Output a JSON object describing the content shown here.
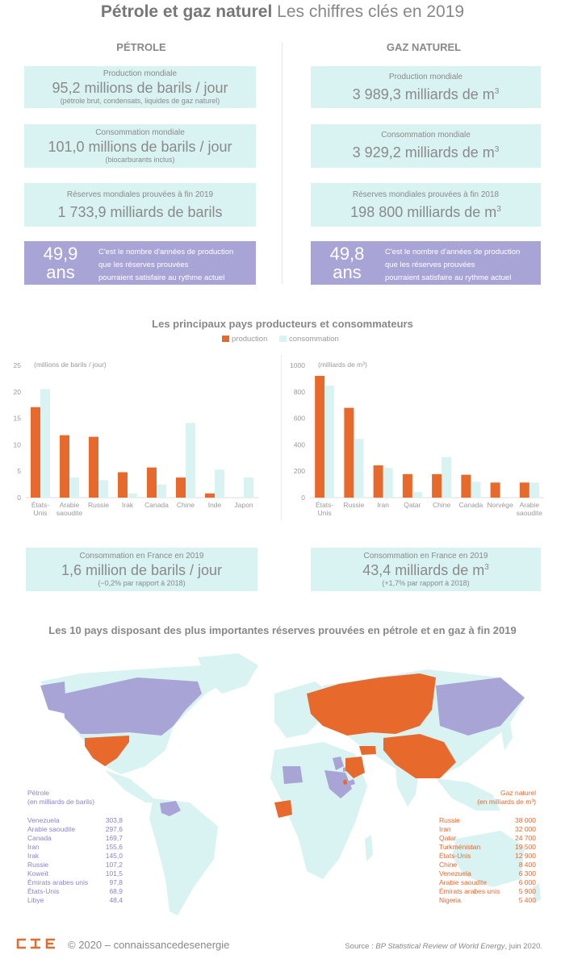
{
  "header": {
    "title_bold": "Pétrole et gaz naturel",
    "title_rest": "Les chiffres clés en 2019"
  },
  "petrole": {
    "heading": "PÉTROLE",
    "production": {
      "label": "Production mondiale",
      "value": "95,2 millions de barils / jour",
      "note": "(pétrole brut, condensats, liquides de gaz naturel)"
    },
    "consommation": {
      "label": "Consommation mondiale",
      "value": "101,0 millions de barils / jour",
      "note": "(biocarburants inclus)"
    },
    "reserves": {
      "label": "Réserves mondiales prouvées à fin 2019",
      "value": "1 733,9 milliards de barils"
    },
    "annees": {
      "num": "49,9",
      "unit": "ans",
      "l1": "C'est le nombre d'années de production",
      "l2": "que les réserves prouvées",
      "l3": "pourraient satisfaire au rythme actuel"
    }
  },
  "gaz": {
    "heading": "GAZ NATUREL",
    "production": {
      "label": "Production mondiale",
      "value": "3 989,3 milliards de m",
      "sup": "3"
    },
    "consommation": {
      "label": "Consommation mondiale",
      "value": "3 929,2 milliards de m",
      "sup": "3"
    },
    "reserves": {
      "label": "Réserves mondiales prouvées à fin 2018",
      "value": "198 800 milliards de m",
      "sup": "3"
    },
    "annees": {
      "num": "49,8",
      "unit": "ans",
      "l1": "C'est le nombre d'années de production",
      "l2": "que les réserves prouvées",
      "l3": "pourraient satisfaire au rythme actuel"
    }
  },
  "producers_title": "Les principaux pays producteurs et consommateurs",
  "legend": {
    "production": "production",
    "consommation": "consommation"
  },
  "colors": {
    "production": "#e8692c",
    "consommation": "#d9f2f2",
    "box": "#d9f2f2",
    "purple": "#a9a4d6",
    "land": "#d9f2f2"
  },
  "chart_data": [
    {
      "type": "bar",
      "unit_label": "(millions de barils / jour)",
      "categories": [
        [
          "États-",
          "Unis"
        ],
        [
          "Arabie",
          "saoudite"
        ],
        [
          "Russie"
        ],
        [
          "Irak"
        ],
        [
          "Canada"
        ],
        [
          "Chine"
        ],
        [
          "Inde"
        ],
        [
          "Japon"
        ]
      ],
      "series": [
        {
          "name": "production",
          "values": [
            17.1,
            11.8,
            11.5,
            4.8,
            5.7,
            3.8,
            0.8,
            0.0
          ]
        },
        {
          "name": "consommation",
          "values": [
            20.5,
            3.8,
            3.3,
            0.8,
            2.5,
            14.1,
            5.3,
            3.8
          ]
        }
      ],
      "ylim": [
        0,
        25
      ],
      "yticks": [
        0,
        5,
        10,
        15,
        20,
        25
      ]
    },
    {
      "type": "bar",
      "unit_label": "(milliards de m³)",
      "categories": [
        [
          "États-",
          "Unis"
        ],
        [
          "Russie"
        ],
        [
          "Iran"
        ],
        [
          "Qatar"
        ],
        [
          "Chine"
        ],
        [
          "Canada"
        ],
        [
          "Norvège"
        ],
        [
          "Arabie",
          "saoudite"
        ]
      ],
      "series": [
        {
          "name": "production",
          "values": [
            921,
            679,
            244,
            178,
            178,
            173,
            114,
            114
          ]
        },
        {
          "name": "consommation",
          "values": [
            847,
            444,
            224,
            42,
            307,
            120,
            0,
            114
          ]
        }
      ],
      "ylim": [
        0,
        1000
      ],
      "yticks": [
        0,
        200,
        400,
        600,
        800,
        1000
      ]
    }
  ],
  "france": {
    "petrole": {
      "label": "Consommation en France en 2019",
      "value": "1,6 million de barils / jour",
      "note": "(−0,2% par rapport à 2018)"
    },
    "gaz": {
      "label": "Consommation en France en 2019",
      "value": "43,4 milliards de m",
      "sup": "3",
      "note": "(+1,7% par rapport à 2018)"
    }
  },
  "map_title": "Les 10 pays disposant des plus importantes réserves prouvées en pétrole et en gaz à fin 2019",
  "petrole_list": {
    "title1": "Pétrole",
    "title2": "(en milliards de barils)",
    "rows": [
      {
        "country": "Venezuela",
        "value": "303,8"
      },
      {
        "country": "Arabie saoudite",
        "value": "297,6"
      },
      {
        "country": "Canada",
        "value": "169,7"
      },
      {
        "country": "Iran",
        "value": "155,6"
      },
      {
        "country": "Irak",
        "value": "145,0"
      },
      {
        "country": "Russie",
        "value": "107,2"
      },
      {
        "country": "Koweït",
        "value": "101,5"
      },
      {
        "country": "Émirats arabes unis",
        "value": "97,8"
      },
      {
        "country": "États-Unis",
        "value": "68,9"
      },
      {
        "country": "Libye",
        "value": "48,4"
      }
    ]
  },
  "gaz_list": {
    "title1": "Gaz naturel",
    "title2": "(en milliards de m³)",
    "rows": [
      {
        "country": "Russie",
        "value": "38 000"
      },
      {
        "country": "Iran",
        "value": "32 000"
      },
      {
        "country": "Qatar",
        "value": "24 700"
      },
      {
        "country": "Turkménistan",
        "value": "19 500"
      },
      {
        "country": "États-Unis",
        "value": "12 900"
      },
      {
        "country": "Chine",
        "value": "8 400"
      },
      {
        "country": "Venezuela",
        "value": "6 300"
      },
      {
        "country": "Arabie saoudite",
        "value": "6 000"
      },
      {
        "country": "Émirats arabes unis",
        "value": "5 900"
      },
      {
        "country": "Nigeria",
        "value": "5 400"
      }
    ]
  },
  "footer": {
    "copyright": "© 2020 – connaissancedesenergie",
    "source_prefix": "Source : ",
    "source_italic": "BP Statistical Review of World Energy",
    "source_suffix": ", juin 2020."
  }
}
